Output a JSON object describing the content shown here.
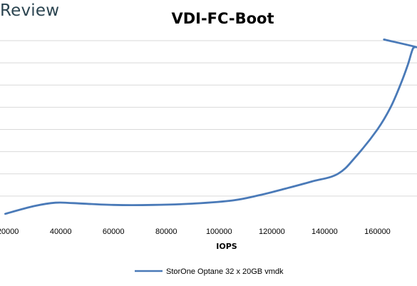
{
  "brand": "Review",
  "chart_data": {
    "type": "line",
    "title": "VDI-FC-Boot",
    "xlabel": "IOPS",
    "ylabel": "",
    "x_ticks": [
      20000,
      40000,
      60000,
      80000,
      100000,
      120000,
      140000,
      160000
    ],
    "xlim": [
      17000,
      175000
    ],
    "ylim": [
      0,
      8
    ],
    "y_gridlines": [
      1,
      2,
      3,
      4,
      5,
      6,
      7,
      8
    ],
    "grid": true,
    "legend_position": "bottom",
    "series": [
      {
        "name": "StorOne Optane 32 x 20GB vmdk",
        "color": "#4a7ab8",
        "x": [
          19000,
          30000,
          38000,
          45000,
          60000,
          75000,
          90000,
          105000,
          115000,
          125000,
          135000,
          145000,
          152000,
          160000,
          165000,
          169000,
          171500,
          173500,
          175000,
          162500
        ],
        "y": [
          0.2,
          0.55,
          0.7,
          0.68,
          0.6,
          0.6,
          0.66,
          0.8,
          1.03,
          1.33,
          1.65,
          2.0,
          2.8,
          4.0,
          5.0,
          6.1,
          6.9,
          7.65,
          7.7,
          8.05
        ]
      }
    ]
  }
}
